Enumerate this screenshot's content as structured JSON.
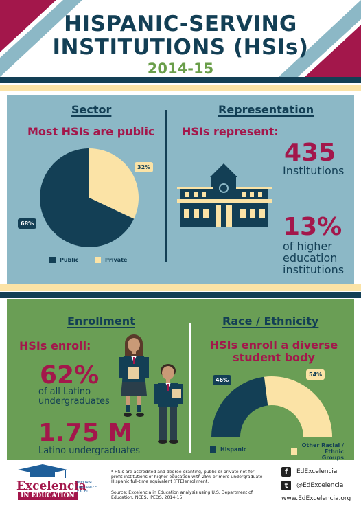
{
  "header": {
    "title_line1": "HISPANIC-SERVING",
    "title_line2": "INSTITUTIONS (HSIs)",
    "year": "2014-15"
  },
  "sector": {
    "heading": "Sector",
    "subheading": "Most HSIs are public",
    "public_label": "68%",
    "private_label": "32%",
    "legend_public": "Public",
    "legend_private": "Private"
  },
  "representation": {
    "heading": "Representation",
    "subheading": "HSIs represent:",
    "institutions_value": "435",
    "institutions_label": "Institutions",
    "share_value": "13%",
    "share_label_1": "of higher",
    "share_label_2": "education",
    "share_label_3": "institutions"
  },
  "enrollment": {
    "heading": "Enrollment",
    "subheading": "HSIs enroll:",
    "latino_share_value": "62%",
    "latino_share_label_1": "of all Latino",
    "latino_share_label_2": "undergraduates",
    "latino_count_value": "1.75 M",
    "latino_count_label": "Latino undergraduates"
  },
  "race": {
    "heading": "Race / Ethnicity",
    "subheading_1": "HSIs enroll a diverse",
    "subheading_2": "student body",
    "hispanic_label": "46%",
    "other_label": "54%",
    "legend_hispanic": "Hispanic",
    "legend_other_1": "Other Racial /",
    "legend_other_2": "Ethnic Groups"
  },
  "chart_data": [
    {
      "type": "pie",
      "categories": [
        "Public",
        "Private"
      ],
      "values": [
        68,
        32
      ],
      "title": "Most HSIs are public"
    },
    {
      "type": "pie",
      "categories": [
        "Hispanic",
        "Other Racial / Ethnic Groups"
      ],
      "values": [
        46,
        54
      ],
      "title": "HSIs enroll a diverse student body"
    }
  ],
  "footer": {
    "logo_main": "Excelencia",
    "logo_sub": "IN EDUCATION",
    "logo_tag_1": "INFORM",
    "logo_tag_2": "ORGANIZE",
    "logo_tag_3": "EXCEL",
    "note": "* HSIs are accredited and degree-granting, public or private not-for-profit institutions of higher education with 25% or more undergraduate Hispanic full-time equivalent (FTE)enrollment.",
    "source": "Source: Excelencia in Education analysis using U.S. Department of Education, NCES, IPEDS, 2014-15.",
    "facebook": "EdExcelencia",
    "twitter": "@EdExcelencia",
    "website": "www.EdExcelencia.org"
  },
  "colors": {
    "navy": "#133f55",
    "cream": "#fbe3a6",
    "maroon": "#a3174b",
    "blue_panel": "#8cb8c6",
    "green_panel": "#6a9e55"
  }
}
